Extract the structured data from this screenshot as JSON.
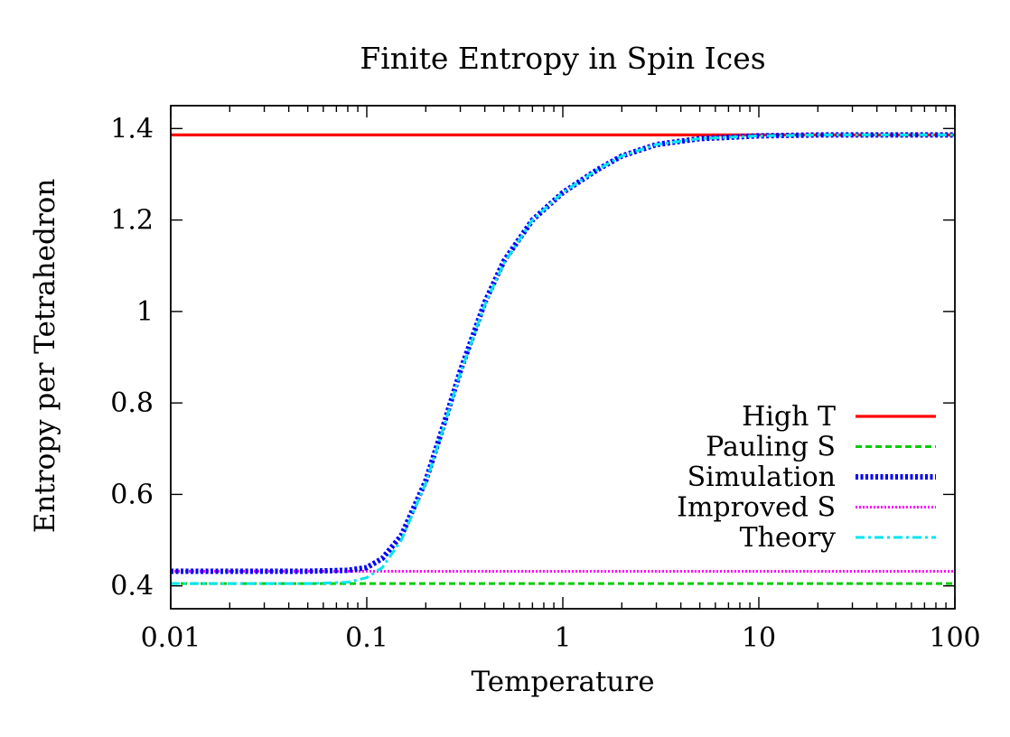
{
  "chart_data": {
    "type": "line",
    "title": "Finite Entropy in Spin Ices",
    "xlabel": "Temperature",
    "ylabel": "Entropy per Tetrahedron",
    "x_scale": "log",
    "xlim": [
      0.01,
      100
    ],
    "ylim": [
      0.35,
      1.45
    ],
    "x_ticks": [
      "0.01",
      "0.1",
      "1",
      "10",
      "100"
    ],
    "y_ticks": [
      "0.4",
      "0.6",
      "0.8",
      "1",
      "1.2",
      "1.4"
    ],
    "grid": false,
    "legend_position": "bottom-right",
    "series": [
      {
        "name": "High T",
        "color": "#ff0000",
        "style": "solid",
        "x": [
          0.01,
          100
        ],
        "y": [
          1.386,
          1.386
        ]
      },
      {
        "name": "Pauling S",
        "color": "#00cc00",
        "style": "dashed",
        "x": [
          0.01,
          100
        ],
        "y": [
          0.405,
          0.405
        ]
      },
      {
        "name": "Simulation",
        "color": "#0000ff",
        "style": "dotted",
        "x": [
          0.01,
          0.02,
          0.05,
          0.08,
          0.1,
          0.12,
          0.15,
          0.2,
          0.25,
          0.3,
          0.4,
          0.5,
          0.7,
          1,
          1.5,
          2,
          3,
          5,
          10,
          20,
          50,
          100
        ],
        "y": [
          0.432,
          0.432,
          0.432,
          0.434,
          0.44,
          0.46,
          0.51,
          0.63,
          0.76,
          0.87,
          1.02,
          1.11,
          1.2,
          1.26,
          1.31,
          1.34,
          1.365,
          1.378,
          1.384,
          1.386,
          1.386,
          1.386
        ]
      },
      {
        "name": "Improved S",
        "color": "#ff00ff",
        "style": "dotted",
        "x": [
          0.01,
          100
        ],
        "y": [
          0.432,
          0.432
        ]
      },
      {
        "name": "Theory",
        "color": "#00e5ee",
        "style": "dash-dot",
        "x": [
          0.01,
          0.02,
          0.05,
          0.08,
          0.1,
          0.12,
          0.15,
          0.2,
          0.25,
          0.3,
          0.4,
          0.5,
          0.7,
          1,
          1.5,
          2,
          3,
          5,
          10,
          20,
          50,
          100
        ],
        "y": [
          0.405,
          0.405,
          0.405,
          0.408,
          0.418,
          0.44,
          0.5,
          0.625,
          0.755,
          0.865,
          1.015,
          1.105,
          1.2,
          1.26,
          1.31,
          1.34,
          1.365,
          1.378,
          1.384,
          1.386,
          1.386,
          1.386
        ]
      }
    ]
  }
}
